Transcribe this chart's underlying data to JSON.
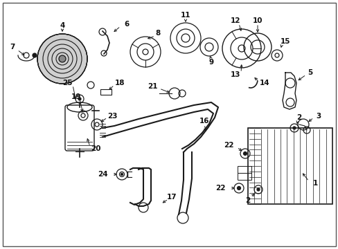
{
  "background_color": "#ffffff",
  "line_color": "#1a1a1a",
  "text_color": "#111111",
  "fig_w": 4.89,
  "fig_h": 3.6,
  "dpi": 100
}
